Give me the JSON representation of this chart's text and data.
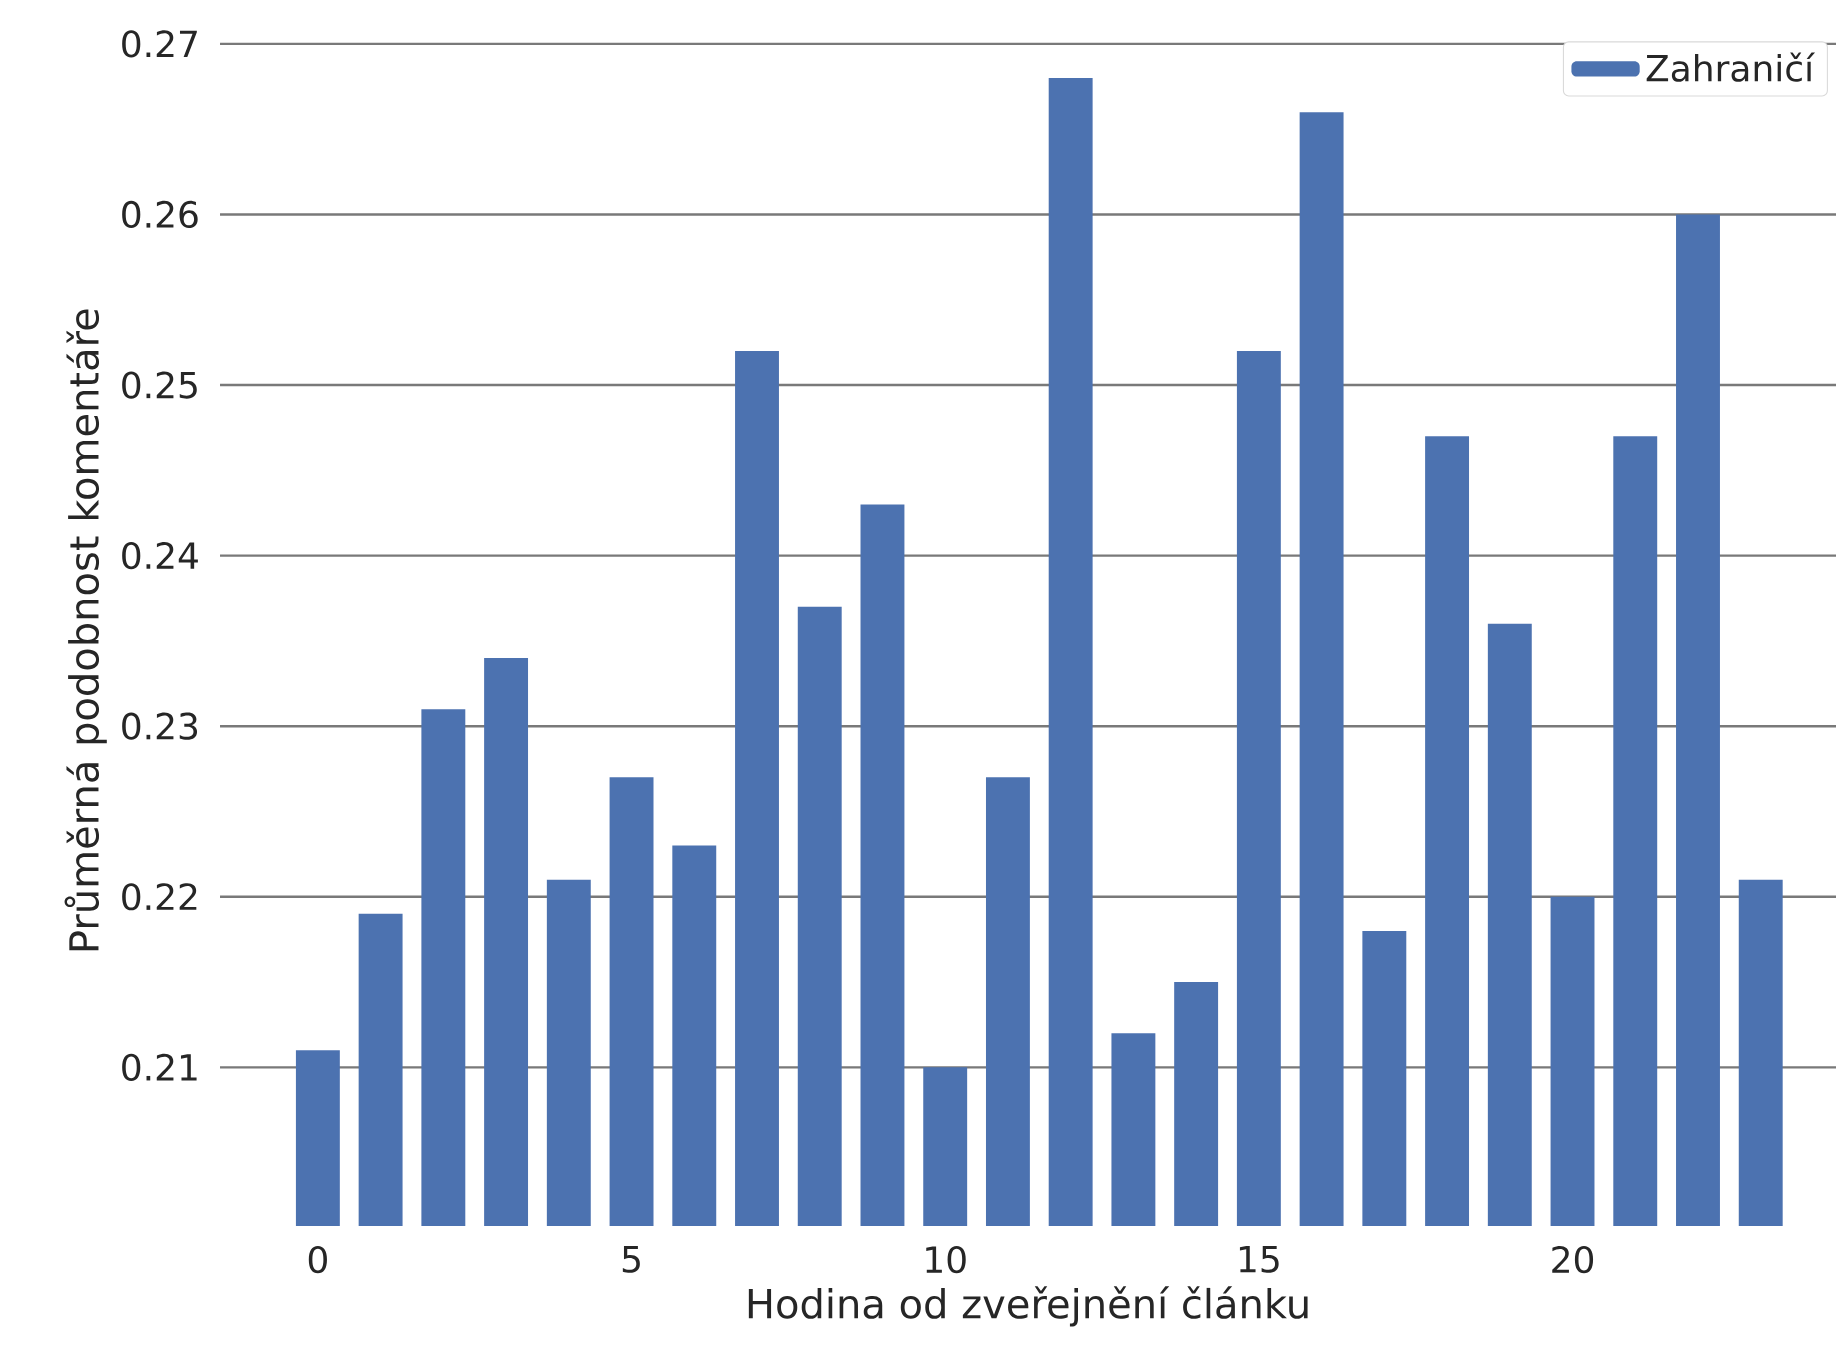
{
  "chart_data": {
    "type": "bar",
    "xlabel": "Hodina od zveřejnění článku",
    "ylabel": "Průměrná podobnost komentáře",
    "x": [
      0,
      1,
      2,
      3,
      4,
      5,
      6,
      7,
      8,
      9,
      10,
      11,
      12,
      13,
      14,
      15,
      16,
      17,
      18,
      19,
      20,
      21,
      22,
      23
    ],
    "series": [
      {
        "name": "Zahraničí",
        "color": "#4c72b0",
        "values": [
          0.211,
          0.219,
          0.231,
          0.234,
          0.221,
          0.227,
          0.223,
          0.252,
          0.237,
          0.243,
          0.21,
          0.227,
          0.268,
          0.212,
          0.215,
          0.252,
          0.266,
          0.218,
          0.247,
          0.236,
          0.22,
          0.247,
          0.26,
          0.221
        ]
      }
    ],
    "xlim": [
      -1.56,
      24.2
    ],
    "ylim": [
      0.2007,
      0.2705
    ],
    "xticks": [
      0,
      5,
      10,
      15,
      20
    ],
    "yticks": [
      0.21,
      0.22,
      0.23,
      0.24,
      0.25,
      0.26,
      0.27
    ],
    "grid": "y",
    "legend": "top right"
  }
}
